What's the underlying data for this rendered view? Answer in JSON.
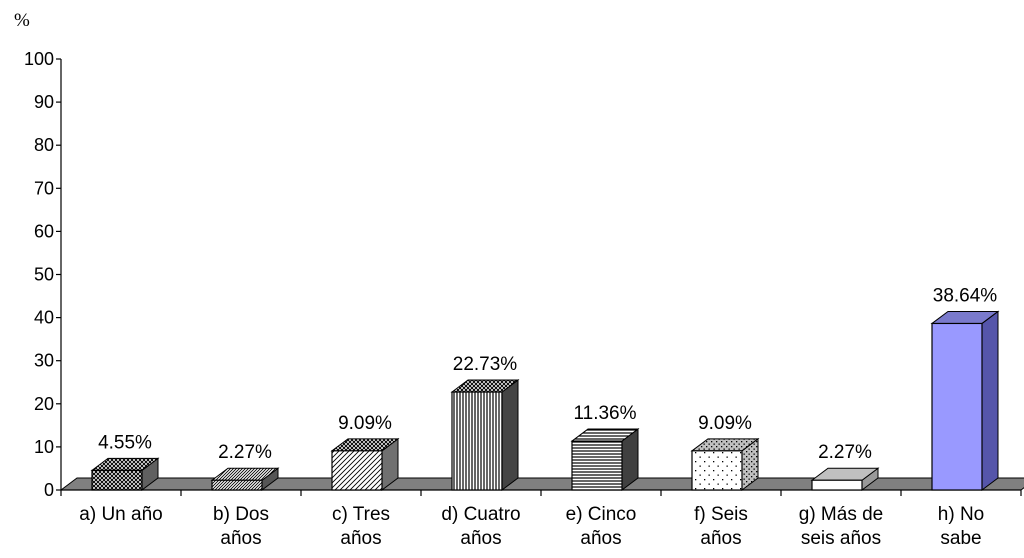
{
  "chart_data": {
    "type": "bar",
    "title": "",
    "ylabel": "%",
    "xlabel": "",
    "ylim": [
      0,
      100
    ],
    "yticks": [
      0,
      10,
      20,
      30,
      40,
      50,
      60,
      70,
      80,
      90,
      100
    ],
    "categories": [
      [
        "a) Un año"
      ],
      [
        "b) Dos",
        "años"
      ],
      [
        "c) Tres",
        "años"
      ],
      [
        "d) Cuatro",
        "años"
      ],
      [
        "e) Cinco",
        "años"
      ],
      [
        "f) Seis",
        "años"
      ],
      [
        "g) Más de",
        "seis años"
      ],
      [
        "h) No",
        "sabe"
      ]
    ],
    "values": [
      4.55,
      2.27,
      9.09,
      22.73,
      11.36,
      9.09,
      2.27,
      38.64
    ],
    "data_labels": [
      "4.55%",
      "2.27%",
      "9.09%",
      "22.73%",
      "11.36%",
      "9.09%",
      "2.27%",
      "38.64%"
    ],
    "patterns": [
      "crosshatch",
      "diagonal-hatch",
      "diagonal-lines",
      "vertical-lines",
      "horizontal-lines",
      "dots",
      "solid-white",
      "solid-blue"
    ],
    "colors": {
      "highlight_bar": "#9999ff",
      "floor": "#808080",
      "axis": "#000000"
    },
    "grid": false,
    "legend": "none"
  }
}
